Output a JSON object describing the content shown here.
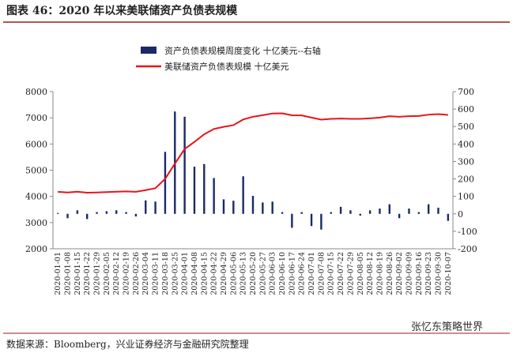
{
  "title": "图表 46：2020 年以来美联储资产负债表规模",
  "source": "数据来源：Bloomberg，兴业证券经济与金融研究院整理",
  "watermark": "张忆东策略世界",
  "chart_data": {
    "type": "bar-line",
    "categories": [
      "2020-01-01",
      "2020-01-08",
      "2020-01-15",
      "2020-01-22",
      "2020-01-29",
      "2020-02-05",
      "2020-02-12",
      "2020-02-19",
      "2020-02-26",
      "2020-03-04",
      "2020-03-11",
      "2020-03-18",
      "2020-03-25",
      "2020-04-01",
      "2020-04-08",
      "2020-04-15",
      "2020-04-22",
      "2020-04-29",
      "2020-05-06",
      "2020-05-13",
      "2020-05-20",
      "2020-05-27",
      "2020-06-03",
      "2020-06-10",
      "2020-06-17",
      "2020-06-24",
      "2020-07-01",
      "2020-07-08",
      "2020-07-15",
      "2020-07-22",
      "2020-07-29",
      "2020-08-05",
      "2020-08-12",
      "2020-08-19",
      "2020-08-26",
      "2020-09-02",
      "2020-09-09",
      "2020-09-16",
      "2020-09-23",
      "2020-09-30",
      "2020-10-07"
    ],
    "series": [
      {
        "name": "资产负债表规模周度变化  十亿美元--右轴",
        "type": "bar",
        "axis": "y2",
        "color": "#1a2a66",
        "values": [
          5,
          -25,
          20,
          -30,
          10,
          15,
          20,
          10,
          -15,
          77,
          70,
          355,
          586,
          556,
          270,
          285,
          205,
          83,
          75,
          215,
          103,
          65,
          70,
          10,
          -80,
          10,
          -70,
          -90,
          10,
          40,
          20,
          -10,
          20,
          30,
          55,
          -25,
          30,
          10,
          55,
          35,
          -40
        ]
      },
      {
        "name": "美联储资产负债表规模  十亿美元",
        "type": "line",
        "axis": "y",
        "color": "#e8141b",
        "values": [
          4173,
          4150,
          4180,
          4140,
          4150,
          4165,
          4180,
          4190,
          4175,
          4240,
          4310,
          4670,
          5250,
          5810,
          6080,
          6370,
          6575,
          6655,
          6720,
          6935,
          7040,
          7100,
          7165,
          7170,
          7095,
          7090,
          7010,
          6930,
          6960,
          6970,
          6960,
          6960,
          6980,
          7010,
          7060,
          7040,
          7060,
          7070,
          7120,
          7140,
          7110
        ]
      }
    ],
    "ylim": [
      2000,
      8000
    ],
    "yticks": [
      2000,
      3000,
      4000,
      5000,
      6000,
      7000,
      8000
    ],
    "y2lim": [
      -200,
      700
    ],
    "y2ticks": [
      -200,
      -100,
      0,
      100,
      200,
      300,
      400,
      500,
      600,
      700
    ]
  }
}
